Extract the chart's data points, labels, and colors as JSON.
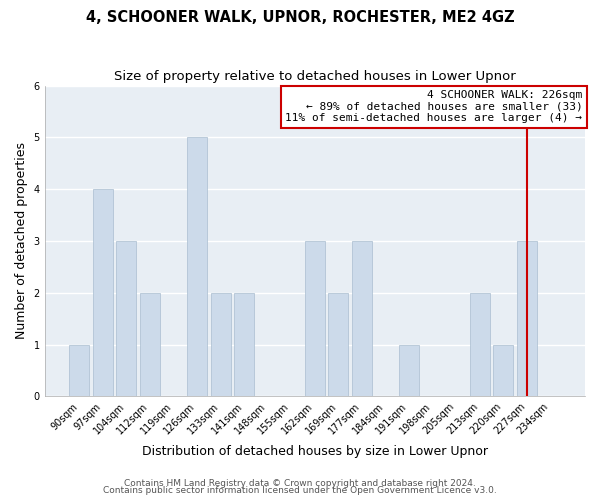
{
  "title": "4, SCHOONER WALK, UPNOR, ROCHESTER, ME2 4GZ",
  "subtitle": "Size of property relative to detached houses in Lower Upnor",
  "xlabel": "Distribution of detached houses by size in Lower Upnor",
  "ylabel": "Number of detached properties",
  "bar_color": "#ccdaea",
  "bar_edgecolor": "#aabdd0",
  "bins": [
    "90sqm",
    "97sqm",
    "104sqm",
    "112sqm",
    "119sqm",
    "126sqm",
    "133sqm",
    "141sqm",
    "148sqm",
    "155sqm",
    "162sqm",
    "169sqm",
    "177sqm",
    "184sqm",
    "191sqm",
    "198sqm",
    "205sqm",
    "213sqm",
    "220sqm",
    "227sqm",
    "234sqm"
  ],
  "heights": [
    1,
    4,
    3,
    2,
    0,
    5,
    2,
    2,
    0,
    0,
    3,
    2,
    3,
    0,
    1,
    0,
    0,
    2,
    1,
    3,
    0
  ],
  "ylim": [
    0,
    6
  ],
  "annotation_line1": "4 SCHOONER WALK: 226sqm",
  "annotation_line2": "← 89% of detached houses are smaller (33)",
  "annotation_line3": "11% of semi-detached houses are larger (4) →",
  "red_color": "#cc0000",
  "footnote1": "Contains HM Land Registry data © Crown copyright and database right 2024.",
  "footnote2": "Contains public sector information licensed under the Open Government Licence v3.0.",
  "figure_bg": "#ffffff",
  "plot_bg": "#e8eef4",
  "grid_color": "#ffffff",
  "title_fontsize": 10.5,
  "subtitle_fontsize": 9.5,
  "axis_label_fontsize": 9,
  "tick_fontsize": 7,
  "footnote_fontsize": 6.5,
  "annotation_fontsize": 8
}
